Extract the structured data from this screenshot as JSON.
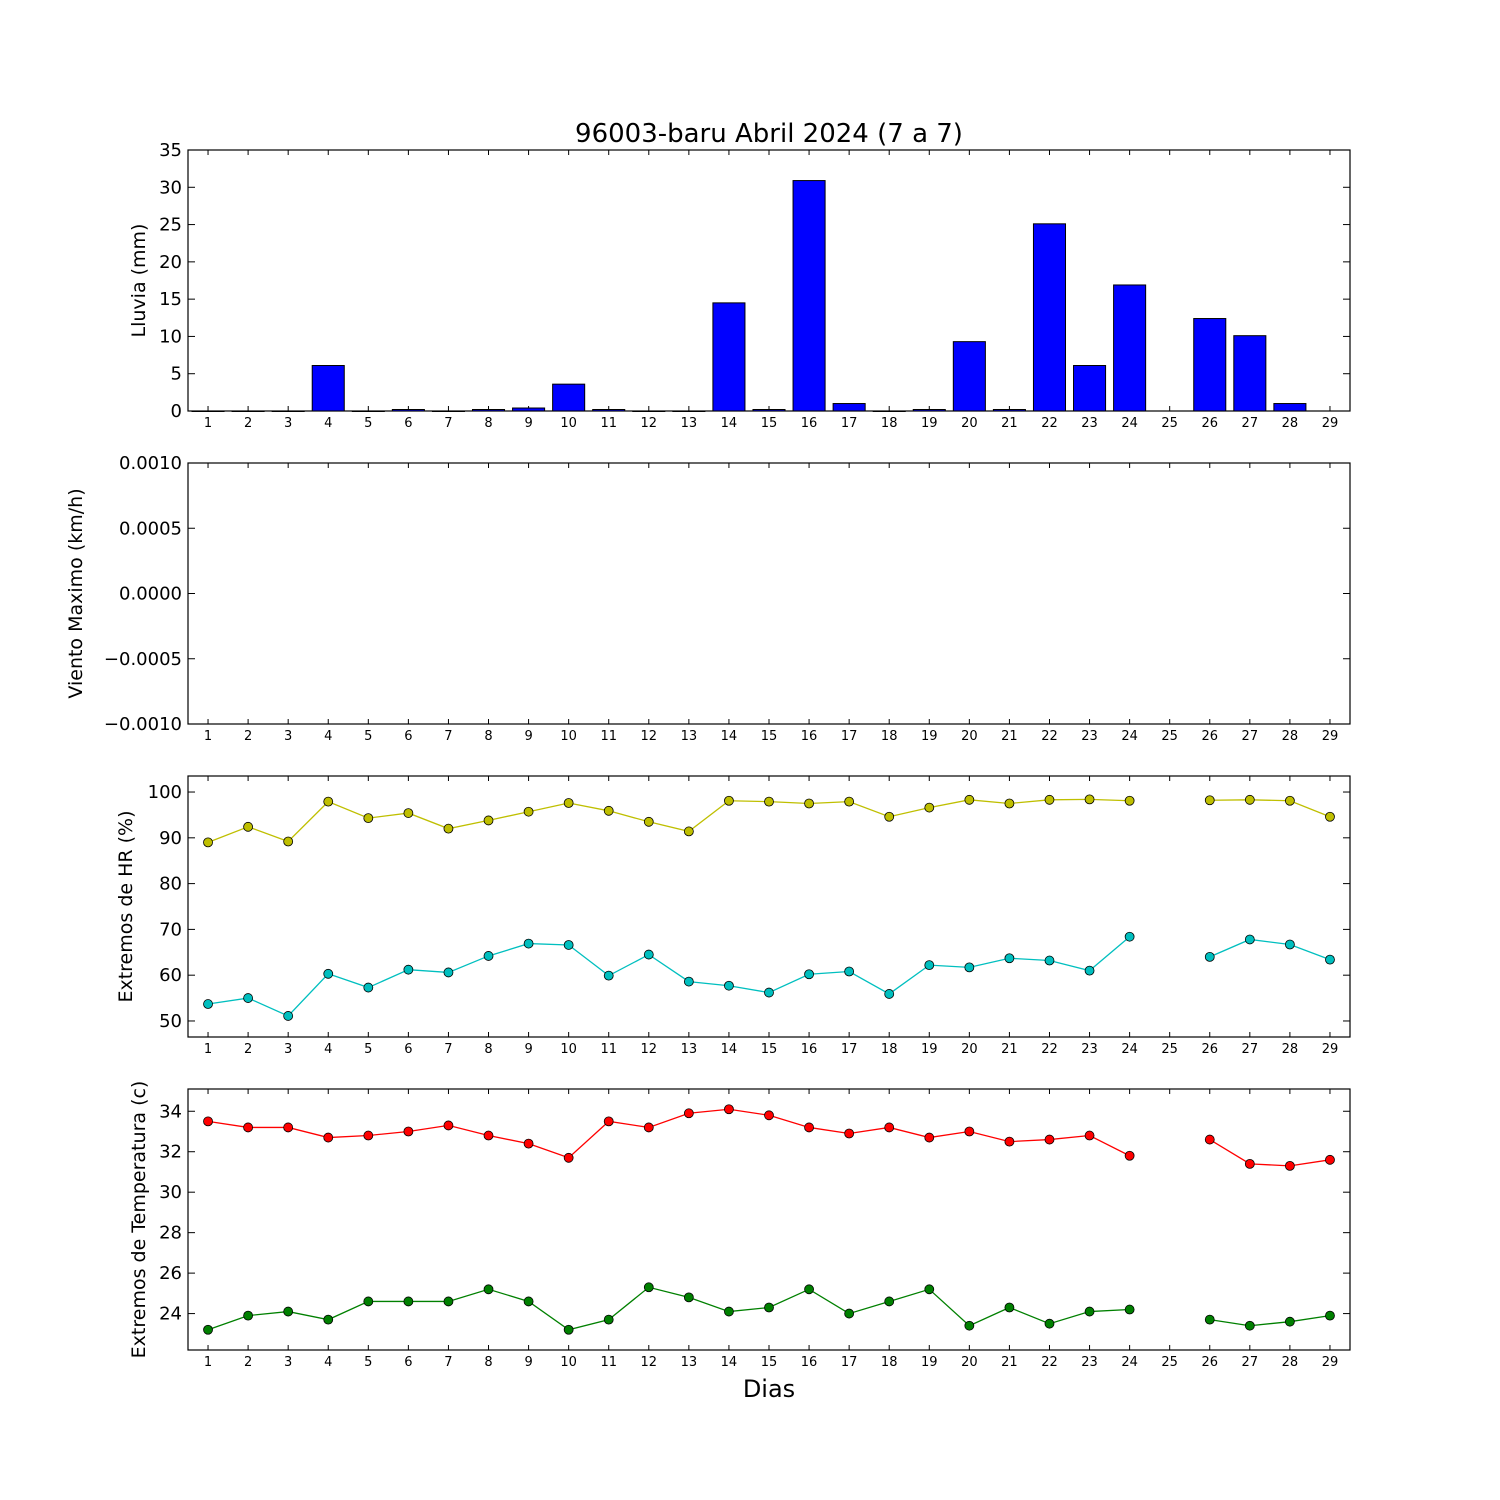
{
  "figure": {
    "title": "96003-baru Abril 2024  (7 a 7)",
    "xlabel": "Dias"
  },
  "chart_data": [
    {
      "type": "bar",
      "ylabel": "Lluvia (mm)",
      "ylim": [
        0,
        35
      ],
      "yticks": [
        "0",
        "5",
        "10",
        "15",
        "20",
        "25",
        "30",
        "35"
      ],
      "ytick_values": [
        0,
        5,
        10,
        15,
        20,
        25,
        30,
        35
      ],
      "categories": [
        1,
        2,
        3,
        4,
        5,
        6,
        7,
        8,
        9,
        10,
        11,
        12,
        13,
        14,
        15,
        16,
        17,
        18,
        19,
        20,
        21,
        22,
        23,
        24,
        25,
        26,
        27,
        28,
        29
      ],
      "values": [
        0,
        0,
        0,
        6.1,
        0,
        0.2,
        0,
        0.2,
        0.4,
        3.6,
        0.2,
        0,
        0,
        14.5,
        0.2,
        30.9,
        1.0,
        0,
        0.2,
        9.3,
        0.2,
        25.1,
        6.1,
        16.9,
        null,
        12.4,
        10.1,
        1.0,
        null
      ],
      "colors": {
        "bar": "#0000ff"
      }
    },
    {
      "type": "line",
      "ylabel": "Viento Maximo (km/h)",
      "ylim": [
        -0.001,
        0.001
      ],
      "yticks": [
        "−0.0010",
        "−0.0005",
        "0.0000",
        "0.0005",
        "0.0010"
      ],
      "ytick_values": [
        -0.001,
        -0.0005,
        0,
        0.0005,
        0.001
      ],
      "x": [
        1,
        2,
        3,
        4,
        5,
        6,
        7,
        8,
        9,
        10,
        11,
        12,
        13,
        14,
        15,
        16,
        17,
        18,
        19,
        20,
        21,
        22,
        23,
        24,
        25,
        26,
        27,
        28,
        29
      ],
      "series": []
    },
    {
      "type": "line",
      "ylabel": "Extremos de HR (%)",
      "ylim": [
        46.5,
        103.5
      ],
      "yticks": [
        "50",
        "60",
        "70",
        "80",
        "90",
        "100"
      ],
      "ytick_values": [
        50,
        60,
        70,
        80,
        90,
        100
      ],
      "x": [
        1,
        2,
        3,
        4,
        5,
        6,
        7,
        8,
        9,
        10,
        11,
        12,
        13,
        14,
        15,
        16,
        17,
        18,
        19,
        20,
        21,
        22,
        23,
        24,
        25,
        26,
        27,
        28,
        29
      ],
      "series": [
        {
          "values": [
            89.0,
            92.4,
            89.2,
            97.9,
            94.3,
            95.4,
            92.0,
            93.8,
            95.7,
            97.6,
            95.9,
            93.5,
            91.4,
            98.1,
            97.9,
            97.5,
            97.9,
            94.6,
            96.6,
            98.3,
            97.5,
            98.3,
            98.4,
            98.1,
            null,
            98.2,
            98.3,
            98.1,
            94.6
          ],
          "color": "#bfbf00"
        },
        {
          "values": [
            53.7,
            55.0,
            51.1,
            60.3,
            57.3,
            61.2,
            60.6,
            64.2,
            66.9,
            66.6,
            59.9,
            64.5,
            58.6,
            57.7,
            56.2,
            60.2,
            60.8,
            55.9,
            62.2,
            61.7,
            63.7,
            63.2,
            61.0,
            68.4,
            null,
            64.0,
            67.8,
            66.7,
            63.4
          ],
          "color": "#00bfbf"
        }
      ]
    },
    {
      "type": "line",
      "ylabel": "Extremos de Temperatura (c)",
      "ylim": [
        22.2,
        35.1
      ],
      "yticks": [
        "24",
        "26",
        "28",
        "30",
        "32",
        "34"
      ],
      "ytick_values": [
        24,
        26,
        28,
        30,
        32,
        34
      ],
      "x": [
        1,
        2,
        3,
        4,
        5,
        6,
        7,
        8,
        9,
        10,
        11,
        12,
        13,
        14,
        15,
        16,
        17,
        18,
        19,
        20,
        21,
        22,
        23,
        24,
        25,
        26,
        27,
        28,
        29
      ],
      "series": [
        {
          "values": [
            33.5,
            33.2,
            33.2,
            32.7,
            32.8,
            33.0,
            33.3,
            32.8,
            32.4,
            31.7,
            33.5,
            33.2,
            33.9,
            34.1,
            33.8,
            33.2,
            32.9,
            33.2,
            32.7,
            33.0,
            32.5,
            32.6,
            32.8,
            31.8,
            null,
            32.6,
            31.4,
            31.3,
            31.6
          ],
          "color": "#ff0000"
        },
        {
          "values": [
            23.2,
            23.9,
            24.1,
            23.7,
            24.6,
            24.6,
            24.6,
            25.2,
            24.6,
            23.2,
            23.7,
            25.3,
            24.8,
            24.1,
            24.3,
            25.2,
            24.0,
            24.6,
            25.2,
            23.4,
            24.3,
            23.5,
            24.1,
            24.2,
            null,
            23.7,
            23.4,
            23.6,
            23.9
          ],
          "color": "#008000"
        }
      ]
    }
  ]
}
